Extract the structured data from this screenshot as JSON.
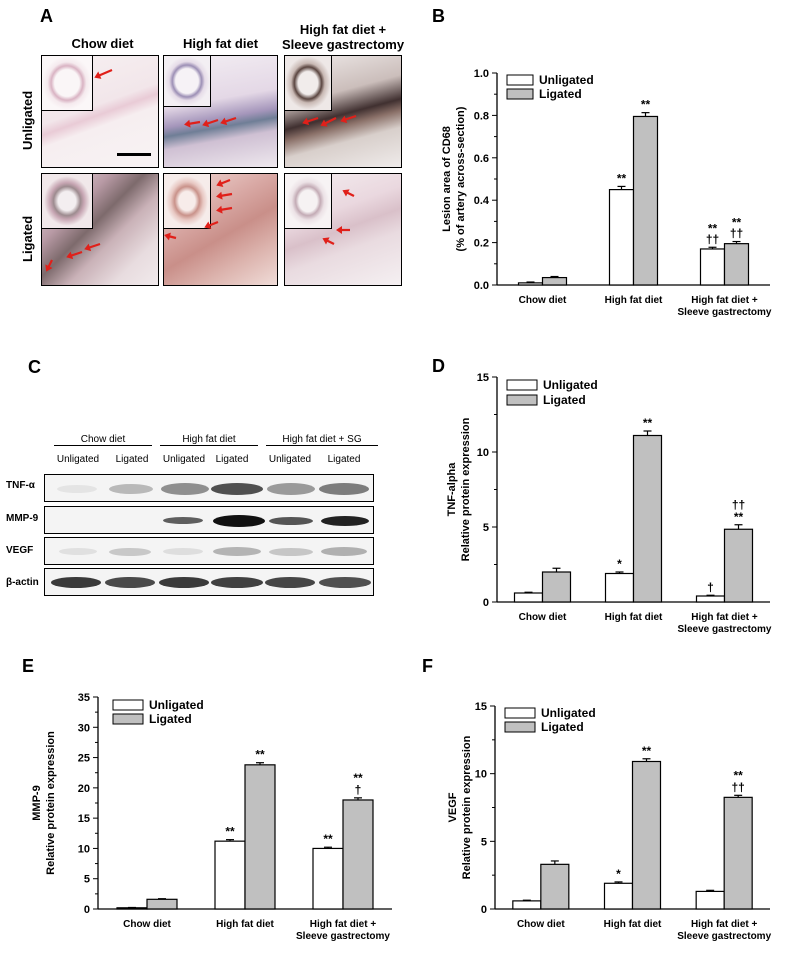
{
  "panel_a": {
    "letter": "A",
    "columns": [
      "Chow diet",
      "High fat diet",
      "High fat diet +\nSleeve gastrectomy"
    ],
    "rows": [
      "Unligated",
      "Ligated"
    ]
  },
  "panel_c": {
    "letter": "C",
    "groups": [
      "Chow diet",
      "High fat diet",
      "High fat diet + SG"
    ],
    "lanes": [
      "Unligated",
      "Ligated",
      "Unligated",
      "Ligated",
      "Unligated",
      "Ligated"
    ],
    "proteins": [
      "TNF-α",
      "MMP-9",
      "VEGF",
      "β-actin"
    ]
  },
  "colors": {
    "unligated": "#ffffff",
    "ligated": "#c0c0c0",
    "arrow": "#e0201a"
  },
  "chart_data": [
    {
      "id": "B",
      "letter": "B",
      "type": "bar",
      "categories": [
        "Chow diet",
        "High fat diet",
        "High fat diet +\nSleeve gastrectomy"
      ],
      "series": [
        {
          "name": "Unligated",
          "values": [
            0.01,
            0.45,
            0.17
          ],
          "errors": [
            0.004,
            0.015,
            0.008
          ],
          "marks": [
            "",
            "**",
            "**\n††"
          ]
        },
        {
          "name": "Ligated",
          "values": [
            0.035,
            0.795,
            0.195
          ],
          "errors": [
            0.005,
            0.018,
            0.01
          ],
          "marks": [
            "",
            "**",
            "**\n††"
          ]
        }
      ],
      "ylabel": "Lesion area of CD68\n(% of artery across-section)",
      "ylim": [
        0,
        1.0
      ],
      "yticks": [
        "0.0",
        "0.2",
        "0.4",
        "0.6",
        "0.8",
        "1.0"
      ],
      "legend": "top-left"
    },
    {
      "id": "D",
      "letter": "D",
      "type": "bar",
      "categories": [
        "Chow diet",
        "High fat diet",
        "High fat diet +\nSleeve gastrectomy"
      ],
      "series": [
        {
          "name": "Unligated",
          "values": [
            0.6,
            1.9,
            0.4
          ],
          "errors": [
            0.05,
            0.1,
            0.05
          ],
          "marks": [
            "",
            "*",
            "†"
          ]
        },
        {
          "name": "Ligated",
          "values": [
            2.0,
            11.1,
            4.85
          ],
          "errors": [
            0.25,
            0.3,
            0.3
          ],
          "marks": [
            "",
            "**",
            "††\n**"
          ]
        }
      ],
      "ylabel": "TNF-alpha\nRelative protein expression",
      "ylim": [
        0,
        15
      ],
      "yticks": [
        "0",
        "5",
        "10",
        "15"
      ],
      "legend": "top-left"
    },
    {
      "id": "E",
      "letter": "E",
      "type": "bar",
      "categories": [
        "Chow diet",
        "High fat diet",
        "High fat diet +\nSleeve gastrectomy"
      ],
      "series": [
        {
          "name": "Unligated",
          "values": [
            0.2,
            11.2,
            10.0
          ],
          "errors": [
            0.05,
            0.25,
            0.2
          ],
          "marks": [
            "",
            "**",
            "**"
          ]
        },
        {
          "name": "Ligated",
          "values": [
            1.6,
            23.8,
            18.0
          ],
          "errors": [
            0.1,
            0.35,
            0.35
          ],
          "marks": [
            "",
            "**",
            "**\n†"
          ]
        }
      ],
      "ylabel": "MMP-9\nRelative protein expression",
      "ylim": [
        0,
        35
      ],
      "yticks": [
        "0",
        "5",
        "10",
        "15",
        "20",
        "25",
        "30",
        "35"
      ],
      "legend": "top-left"
    },
    {
      "id": "F",
      "letter": "F",
      "type": "bar",
      "categories": [
        "Chow diet",
        "High fat diet",
        "High fat diet +\nSleeve gastrectomy"
      ],
      "series": [
        {
          "name": "Unligated",
          "values": [
            0.6,
            1.9,
            1.3
          ],
          "errors": [
            0.05,
            0.1,
            0.08
          ],
          "marks": [
            "",
            "*",
            ""
          ]
        },
        {
          "name": "Ligated",
          "values": [
            3.3,
            10.9,
            8.25
          ],
          "errors": [
            0.25,
            0.2,
            0.15
          ],
          "marks": [
            "",
            "**",
            "**\n††"
          ]
        }
      ],
      "ylabel": "VEGF\nRelative protein expression",
      "ylim": [
        0,
        15
      ],
      "yticks": [
        "0",
        "5",
        "10",
        "15"
      ],
      "legend": "top-left"
    }
  ]
}
